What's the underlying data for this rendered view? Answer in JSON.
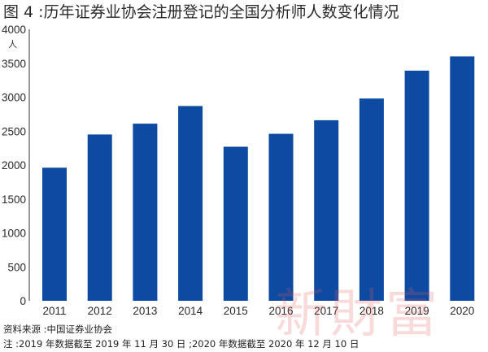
{
  "title": "图 4 :历年证券业协会注册登记的全国分析师人数变化情况",
  "unit_label": "人",
  "source": "资料来源 :中国证券业协会",
  "note": "注 :2019 年数据截至 2019 年 11 月 30 日 ;2020 年数据截至 2020 年 12 月 10 日",
  "watermark": "新財富",
  "colors": {
    "bar": "#0d4aa1",
    "axis": "#333333",
    "watermark": "#e35a5a"
  },
  "chart_data": {
    "type": "bar",
    "categories": [
      "2011",
      "2012",
      "2013",
      "2014",
      "2015",
      "2016",
      "2017",
      "2018",
      "2019",
      "2020"
    ],
    "values": [
      1960,
      2450,
      2610,
      2870,
      2270,
      2460,
      2660,
      2980,
      3390,
      3600
    ],
    "ylabel": "人",
    "ylim": [
      0,
      4000
    ],
    "yticks": [
      0,
      500,
      1000,
      1500,
      2000,
      2500,
      3000,
      3500,
      4000
    ],
    "grid": false,
    "legend": "none"
  }
}
